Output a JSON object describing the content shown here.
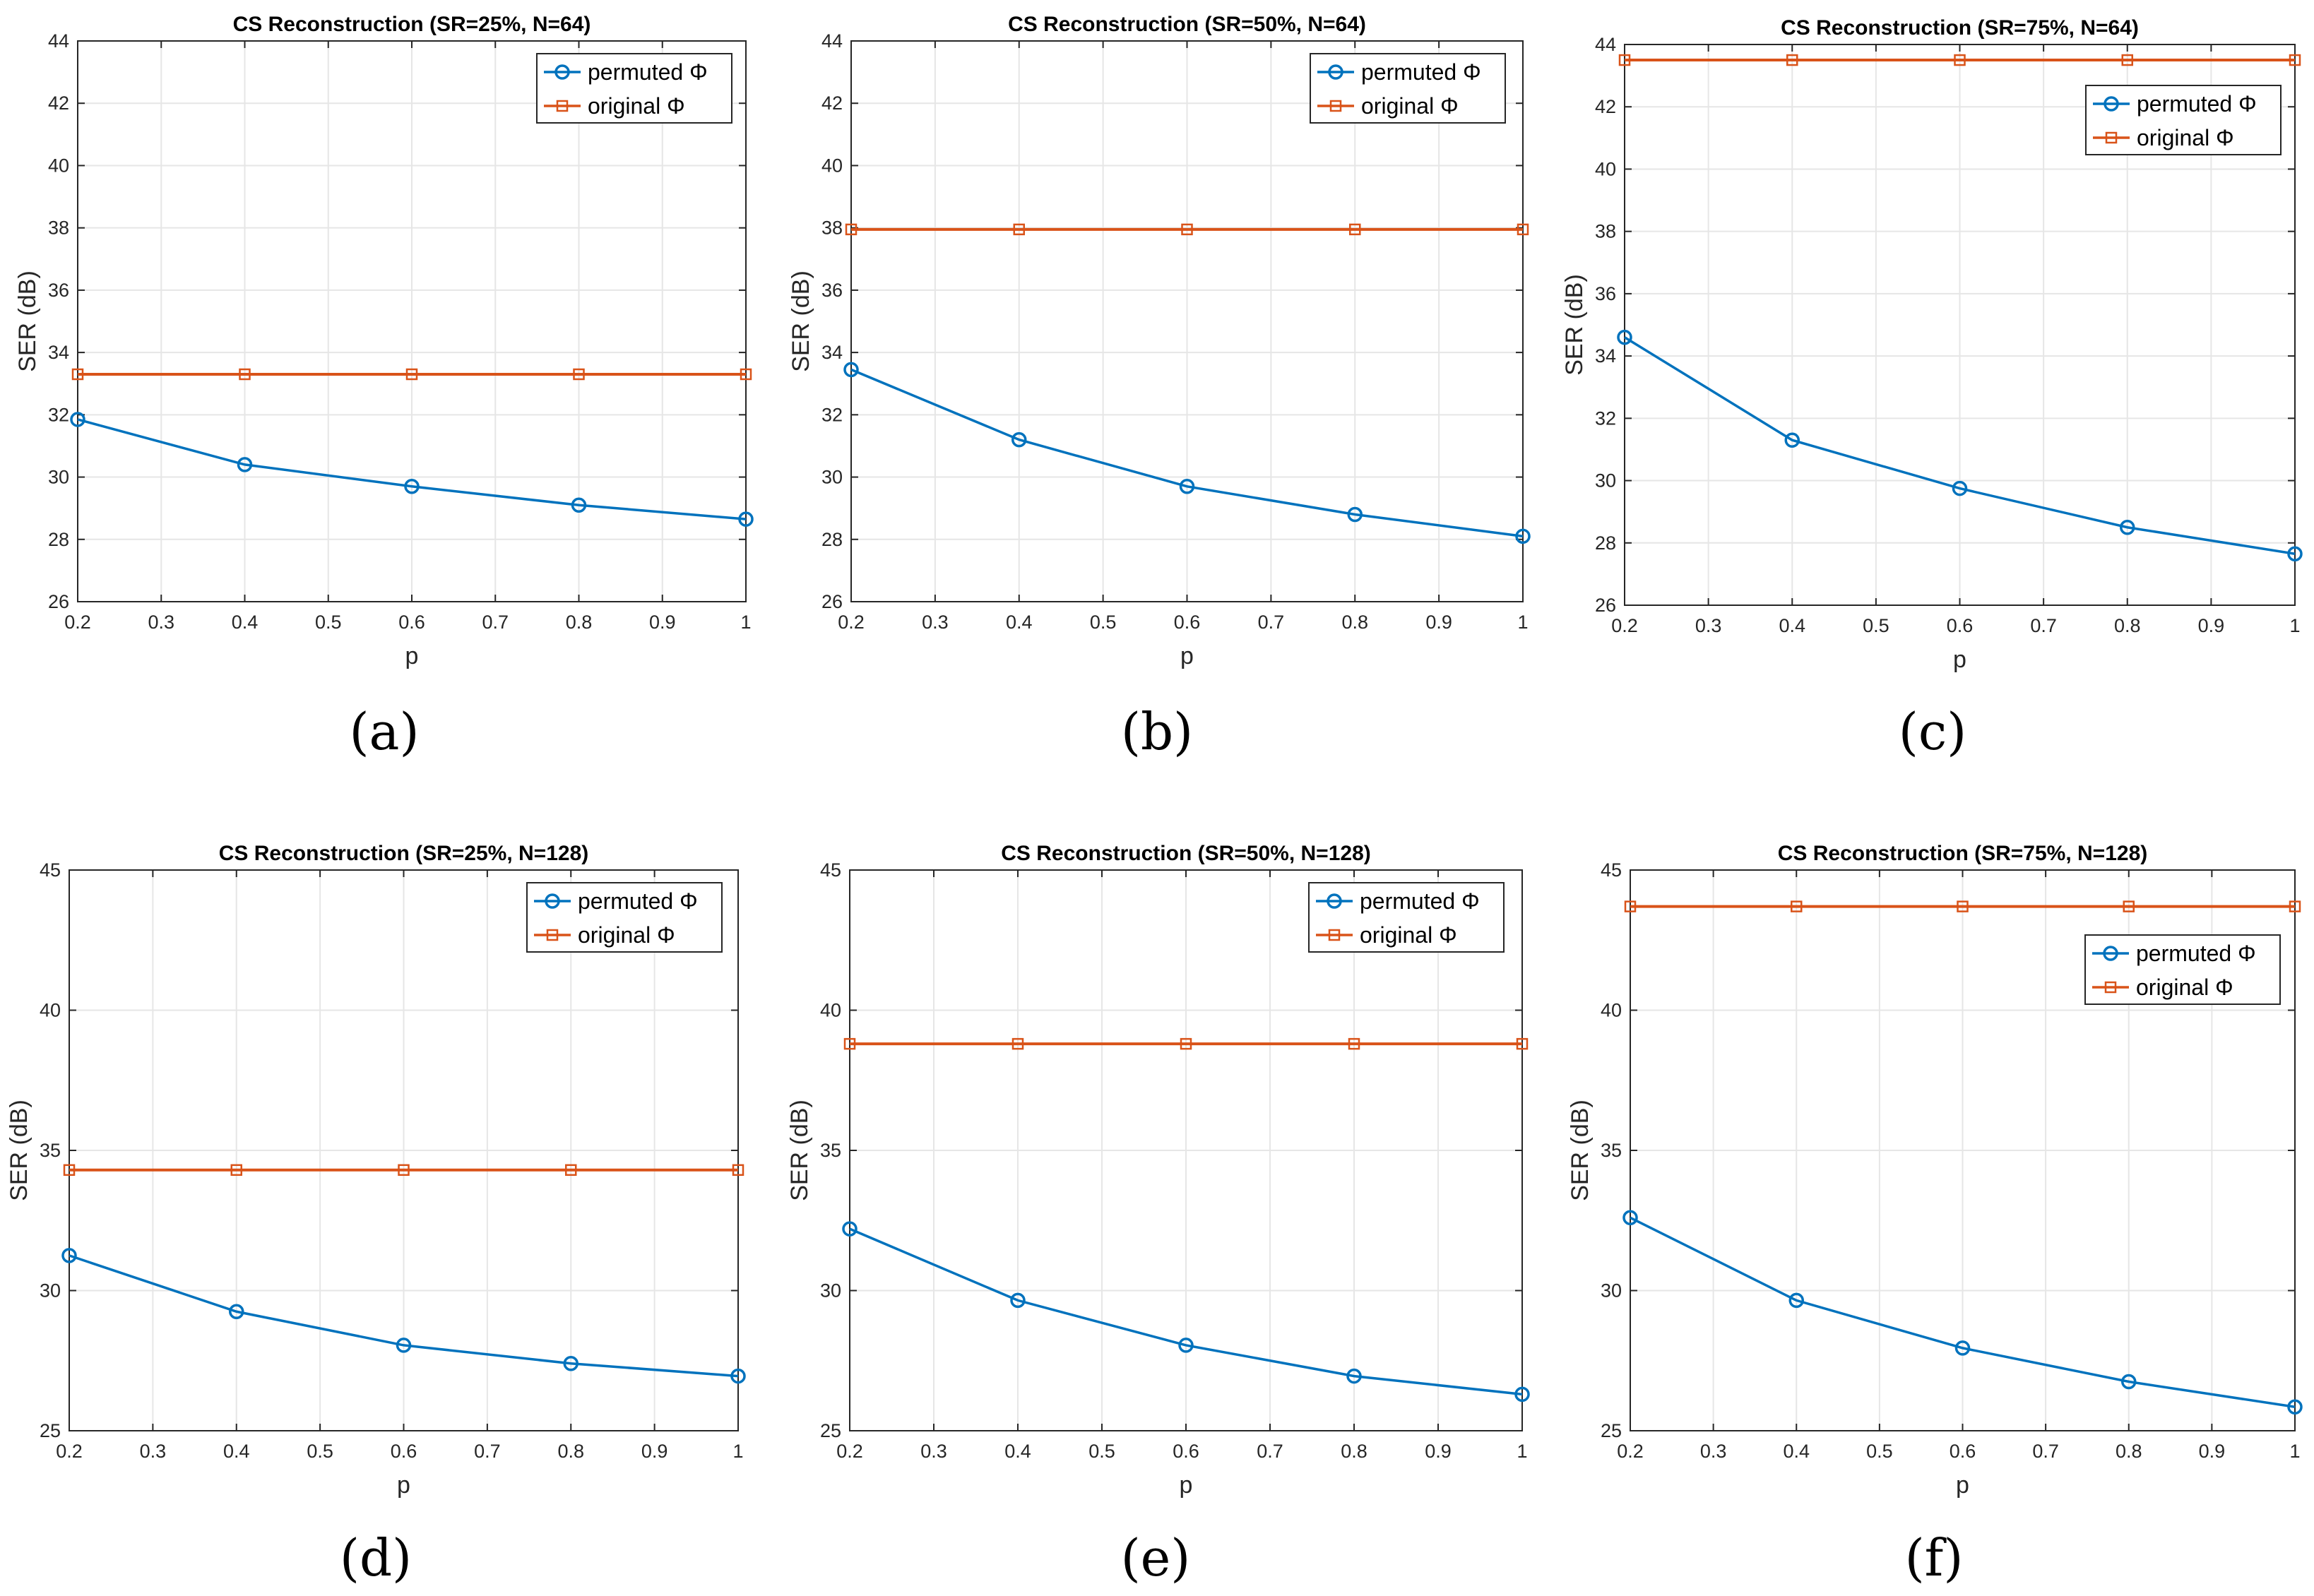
{
  "figure": {
    "panel_labels": [
      "(a)",
      "(b)",
      "(c)",
      "(d)",
      "(e)",
      "(f)"
    ]
  },
  "colors": {
    "permuted": "#0072BD",
    "original": "#D95319",
    "grid": "#e6e6e6",
    "axis": "#262626"
  },
  "chart_data": [
    {
      "type": "line",
      "title": "CS Reconstruction (SR=25%, N=64)",
      "xlabel": "p",
      "ylabel": "SER (dB)",
      "xlim": [
        0.2,
        1
      ],
      "ylim": [
        26,
        44
      ],
      "xticks": [
        0.2,
        0.3,
        0.4,
        0.5,
        0.6,
        0.7,
        0.8,
        0.9,
        1
      ],
      "xtick_labels": [
        "0.2",
        "0.3",
        "0.4",
        "0.5",
        "0.6",
        "0.7",
        "0.8",
        "0.9",
        "1"
      ],
      "yticks": [
        26,
        28,
        30,
        32,
        34,
        36,
        38,
        40,
        42,
        44
      ],
      "grid": true,
      "legend_position": "top-right",
      "x": [
        0.2,
        0.4,
        0.6,
        0.8,
        1.0
      ],
      "series": [
        {
          "name": "permuted Φ",
          "marker": "circle",
          "values": [
            31.85,
            30.4,
            29.7,
            29.1,
            28.65
          ]
        },
        {
          "name": "original Φ",
          "marker": "square",
          "values": [
            33.3,
            33.3,
            33.3,
            33.3,
            33.3
          ]
        }
      ]
    },
    {
      "type": "line",
      "title": "CS Reconstruction (SR=50%, N=64)",
      "xlabel": "p",
      "ylabel": "SER (dB)",
      "xlim": [
        0.2,
        1
      ],
      "ylim": [
        26,
        44
      ],
      "xticks": [
        0.2,
        0.3,
        0.4,
        0.5,
        0.6,
        0.7,
        0.8,
        0.9,
        1
      ],
      "xtick_labels": [
        "0.2",
        "0.3",
        "0.4",
        "0.5",
        "0.6",
        "0.7",
        "0.8",
        "0.9",
        "1"
      ],
      "yticks": [
        26,
        28,
        30,
        32,
        34,
        36,
        38,
        40,
        42,
        44
      ],
      "grid": true,
      "legend_position": "top-right",
      "x": [
        0.2,
        0.4,
        0.6,
        0.8,
        1.0
      ],
      "series": [
        {
          "name": "permuted Φ",
          "marker": "circle",
          "values": [
            33.45,
            31.2,
            29.7,
            28.8,
            28.1
          ]
        },
        {
          "name": "original Φ",
          "marker": "square",
          "values": [
            37.95,
            37.95,
            37.95,
            37.95,
            37.95
          ]
        }
      ]
    },
    {
      "type": "line",
      "title": "CS Reconstruction (SR=75%, N=64)",
      "xlabel": "p",
      "ylabel": "SER (dB)",
      "xlim": [
        0.2,
        1
      ],
      "ylim": [
        26,
        44
      ],
      "xticks": [
        0.2,
        0.3,
        0.4,
        0.5,
        0.6,
        0.7,
        0.8,
        0.9,
        1
      ],
      "xtick_labels": [
        "0.2",
        "0.3",
        "0.4",
        "0.5",
        "0.6",
        "0.7",
        "0.8",
        "0.9",
        "1"
      ],
      "yticks": [
        26,
        28,
        30,
        32,
        34,
        36,
        38,
        40,
        42,
        44
      ],
      "grid": true,
      "legend_position": "top-right",
      "x": [
        0.2,
        0.4,
        0.6,
        0.8,
        1.0
      ],
      "series": [
        {
          "name": "permuted Φ",
          "marker": "circle",
          "values": [
            34.6,
            31.3,
            29.75,
            28.5,
            27.65
          ]
        },
        {
          "name": "original Φ",
          "marker": "square",
          "values": [
            43.5,
            43.5,
            43.5,
            43.5,
            43.5
          ]
        }
      ]
    },
    {
      "type": "line",
      "title": "CS Reconstruction (SR=25%, N=128)",
      "xlabel": "p",
      "ylabel": "SER (dB)",
      "xlim": [
        0.2,
        1
      ],
      "ylim": [
        25,
        45
      ],
      "xticks": [
        0.2,
        0.3,
        0.4,
        0.5,
        0.6,
        0.7,
        0.8,
        0.9,
        1
      ],
      "xtick_labels": [
        "0.2",
        "0.3",
        "0.4",
        "0.5",
        "0.6",
        "0.7",
        "0.8",
        "0.9",
        "1"
      ],
      "yticks": [
        25,
        30,
        35,
        40,
        45
      ],
      "grid": true,
      "legend_position": "top-right",
      "x": [
        0.2,
        0.4,
        0.6,
        0.8,
        1.0
      ],
      "series": [
        {
          "name": "permuted Φ",
          "marker": "circle",
          "values": [
            31.25,
            29.25,
            28.05,
            27.4,
            26.95
          ]
        },
        {
          "name": "original Φ",
          "marker": "square",
          "values": [
            34.3,
            34.3,
            34.3,
            34.3,
            34.3
          ]
        }
      ]
    },
    {
      "type": "line",
      "title": "CS Reconstruction (SR=50%, N=128)",
      "xlabel": "p",
      "ylabel": "SER (dB)",
      "xlim": [
        0.2,
        1
      ],
      "ylim": [
        25,
        45
      ],
      "xticks": [
        0.2,
        0.3,
        0.4,
        0.5,
        0.6,
        0.7,
        0.8,
        0.9,
        1
      ],
      "xtick_labels": [
        "0.2",
        "0.3",
        "0.4",
        "0.5",
        "0.6",
        "0.7",
        "0.8",
        "0.9",
        "1"
      ],
      "yticks": [
        25,
        30,
        35,
        40,
        45
      ],
      "grid": true,
      "legend_position": "top-right",
      "x": [
        0.2,
        0.4,
        0.6,
        0.8,
        1.0
      ],
      "series": [
        {
          "name": "permuted Φ",
          "marker": "circle",
          "values": [
            32.2,
            29.65,
            28.05,
            26.95,
            26.3
          ]
        },
        {
          "name": "original Φ",
          "marker": "square",
          "values": [
            38.8,
            38.8,
            38.8,
            38.8,
            38.8
          ]
        }
      ]
    },
    {
      "type": "line",
      "title": "CS Reconstruction (SR=75%, N=128)",
      "xlabel": "p",
      "ylabel": "SER (dB)",
      "xlim": [
        0.2,
        1
      ],
      "ylim": [
        25,
        45
      ],
      "xticks": [
        0.2,
        0.3,
        0.4,
        0.5,
        0.6,
        0.7,
        0.8,
        0.9,
        1
      ],
      "xtick_labels": [
        "0.2",
        "0.3",
        "0.4",
        "0.5",
        "0.6",
        "0.7",
        "0.8",
        "0.9",
        "1"
      ],
      "yticks": [
        25,
        30,
        35,
        40,
        45
      ],
      "grid": true,
      "legend_position": "upper-right, below top",
      "x": [
        0.2,
        0.4,
        0.6,
        0.8,
        1.0
      ],
      "series": [
        {
          "name": "permuted Φ",
          "marker": "circle",
          "values": [
            32.6,
            29.65,
            27.95,
            26.75,
            25.85
          ]
        },
        {
          "name": "original Φ",
          "marker": "square",
          "values": [
            43.7,
            43.7,
            43.7,
            43.7,
            43.7
          ]
        }
      ]
    }
  ]
}
